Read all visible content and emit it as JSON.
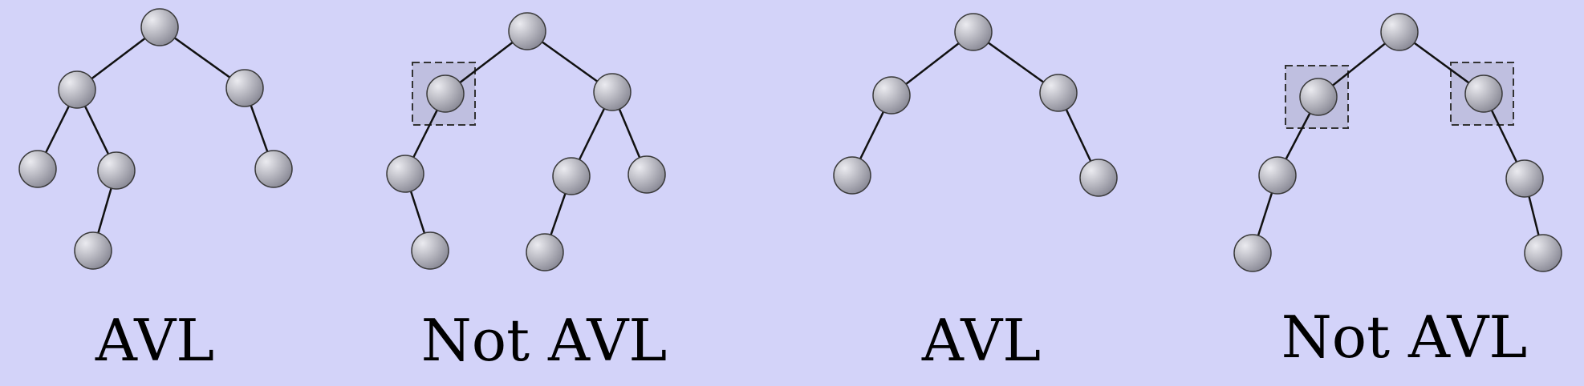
{
  "diagram": {
    "colors": {
      "background": "#d3d3f9",
      "node_fill_light": "#ebebf0",
      "node_fill_dark": "#7f7f8c",
      "node_stroke": "#3a3a3a",
      "edge": "#111111",
      "highlight_fill": "#bfbfe0",
      "highlight_stroke": "#333333"
    },
    "trees": [
      {
        "id": "tree-1",
        "label": "AVL",
        "balanced": true,
        "nodes": [
          "root",
          "left",
          "right",
          "left-left",
          "left-right",
          "left-right-left",
          "right-right"
        ],
        "edges": [
          [
            "root",
            "left"
          ],
          [
            "root",
            "right"
          ],
          [
            "left",
            "left-left"
          ],
          [
            "left",
            "left-right"
          ],
          [
            "left-right",
            "left-right-left"
          ],
          [
            "right",
            "right-right"
          ]
        ],
        "highlighted": []
      },
      {
        "id": "tree-2",
        "label": "Not AVL",
        "balanced": false,
        "nodes": [
          "root",
          "left",
          "right",
          "left-left",
          "left-left-right",
          "right-left",
          "right-right",
          "right-left-left"
        ],
        "edges": [
          [
            "root",
            "left"
          ],
          [
            "root",
            "right"
          ],
          [
            "left",
            "left-left"
          ],
          [
            "left-left",
            "left-left-right"
          ],
          [
            "right",
            "right-left"
          ],
          [
            "right",
            "right-right"
          ],
          [
            "right-left",
            "right-left-left"
          ]
        ],
        "highlighted": [
          "left"
        ]
      },
      {
        "id": "tree-3",
        "label": "AVL",
        "balanced": true,
        "nodes": [
          "root",
          "left",
          "right",
          "left-left",
          "right-right"
        ],
        "edges": [
          [
            "root",
            "left"
          ],
          [
            "root",
            "right"
          ],
          [
            "left",
            "left-left"
          ],
          [
            "right",
            "right-right"
          ]
        ],
        "highlighted": []
      },
      {
        "id": "tree-4",
        "label": "Not AVL",
        "balanced": false,
        "nodes": [
          "root",
          "left",
          "right",
          "left-left",
          "left-left-left",
          "right-right",
          "right-right-right"
        ],
        "edges": [
          [
            "root",
            "left"
          ],
          [
            "root",
            "right"
          ],
          [
            "left",
            "left-left"
          ],
          [
            "left-left",
            "left-left-left"
          ],
          [
            "right",
            "right-right"
          ],
          [
            "right-right",
            "right-right-right"
          ]
        ],
        "highlighted": [
          "left",
          "right"
        ]
      }
    ]
  }
}
